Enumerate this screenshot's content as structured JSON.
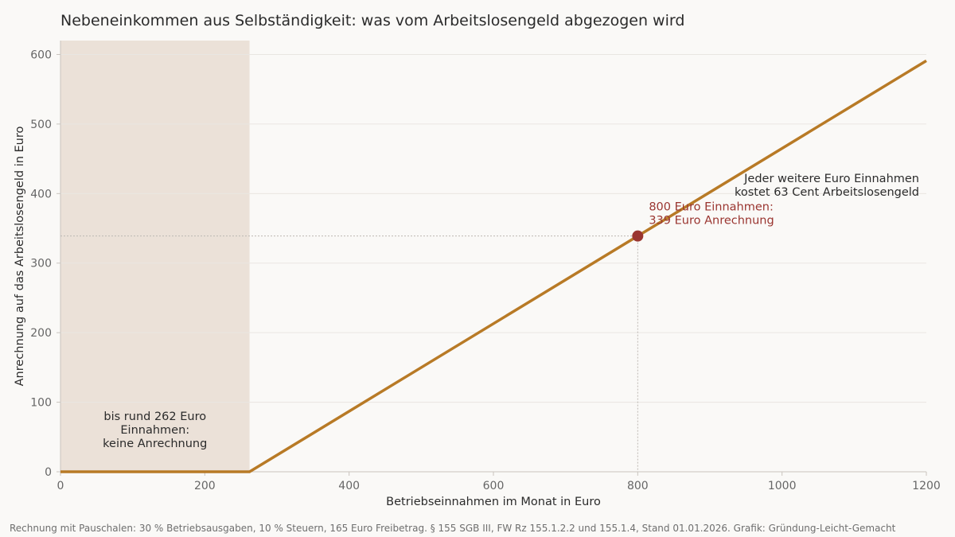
{
  "chart_data": {
    "type": "line",
    "title": "Nebeneinkommen aus Selbständigkeit: was vom Arbeitslosengeld abgezogen wird",
    "xlabel": "Betriebseinnahmen im Monat in Euro",
    "ylabel": "Anrechnung auf das Arbeitslosengeld in Euro",
    "xlim": [
      0,
      1200
    ],
    "ylim": [
      0,
      620
    ],
    "x_ticks": [
      0,
      200,
      400,
      600,
      800,
      1000,
      1200
    ],
    "y_ticks": [
      0,
      100,
      200,
      300,
      400,
      500,
      600
    ],
    "grid": "horizontal",
    "series": [
      {
        "color": "#b87a26",
        "x": [
          0,
          262,
          1200
        ],
        "y": [
          0,
          0,
          591
        ]
      }
    ],
    "shaded_region": {
      "x0": 0,
      "x1": 262,
      "color": "#ebe1d8"
    },
    "highlight_point": {
      "x": 800,
      "y": 339,
      "color": "#9a3530"
    },
    "annotations": {
      "shaded": [
        "bis rund 262 Euro",
        "Einnahmen:",
        "keine Anrechnung"
      ],
      "point": [
        "800 Euro Einnahmen:",
        "339 Euro Anrechnung"
      ],
      "slope": [
        "Jeder weitere Euro Einnahmen",
        "kostet 63 Cent Arbeitslosengeld"
      ]
    },
    "footer": "Rechnung mit Pauschalen: 30 % Betriebsausgaben, 10 % Steuern, 165 Euro Freibetrag. § 155 SGB III, FW Rz 155.1.2.2 und 155.1.4, Stand 01.01.2026. Grafik: Gründung-Leicht-Gemacht"
  }
}
